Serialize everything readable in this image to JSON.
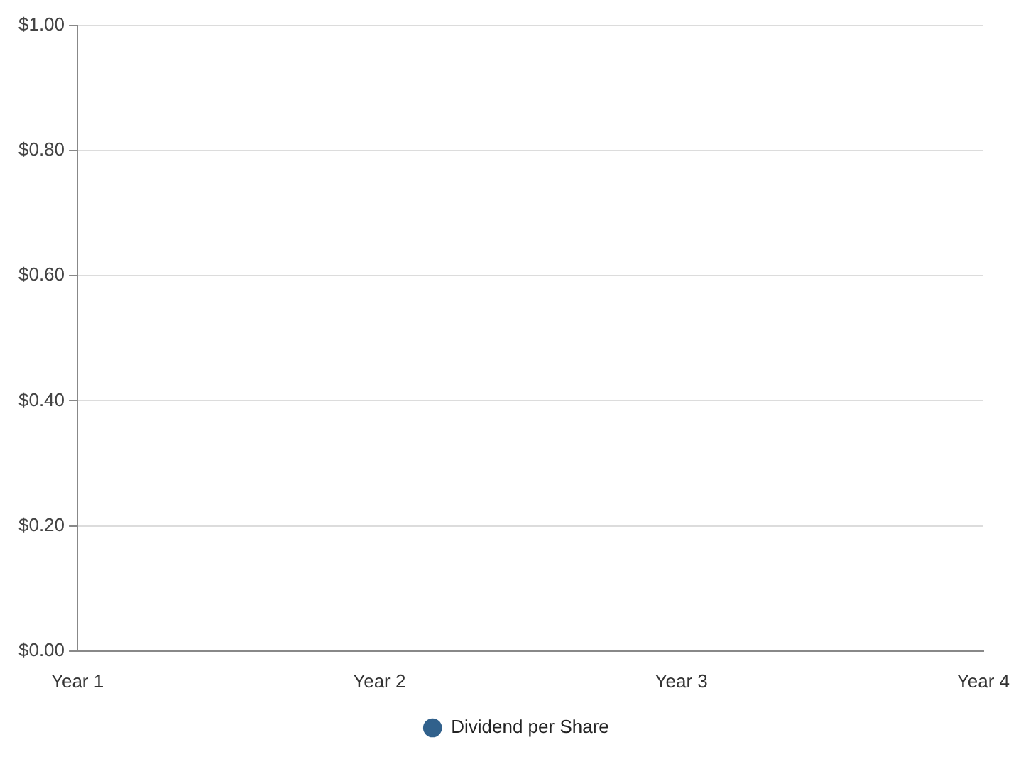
{
  "chart_data": {
    "type": "line",
    "categories": [
      "Year 1",
      "Year 2",
      "Year 3",
      "Year 4"
    ],
    "series": [
      {
        "name": "Dividend per Share",
        "color": "#31618c",
        "values": [
          null,
          null,
          null,
          null
        ]
      }
    ],
    "ylim": [
      0,
      1
    ],
    "yticks": [
      {
        "value": 0,
        "label": "$0.00"
      },
      {
        "value": 0.2,
        "label": "$0.20"
      },
      {
        "value": 0.4,
        "label": "$0.40"
      },
      {
        "value": 0.6,
        "label": "$0.60"
      },
      {
        "value": 0.8,
        "label": "$0.80"
      },
      {
        "value": 1,
        "label": "$1.00"
      }
    ],
    "grid": "y",
    "legend": "bottom",
    "marker": "circle"
  }
}
